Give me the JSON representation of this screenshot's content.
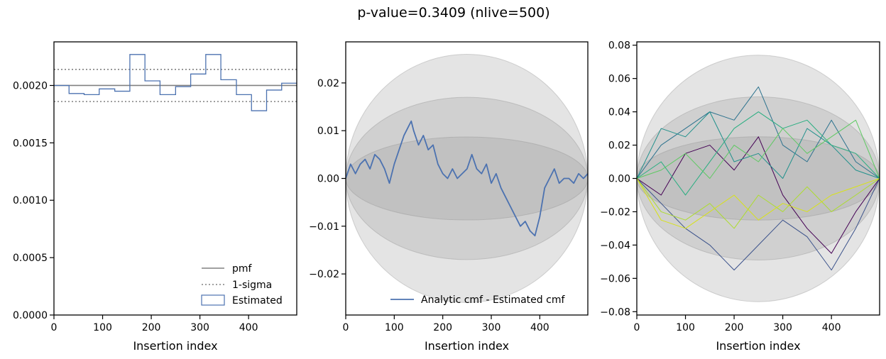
{
  "figure": {
    "title": "p-value=0.3409 (nlive=500)"
  },
  "chart_data": [
    {
      "type": "line",
      "panel": "left",
      "xlabel": "Insertion index",
      "ylabel": "",
      "xlim": [
        0,
        499
      ],
      "ylim": [
        0,
        0.00238
      ],
      "xticks": [
        0,
        100,
        200,
        300,
        400
      ],
      "xtick_labels": [
        "0",
        "100",
        "200",
        "300",
        "400"
      ],
      "yticks": [
        0,
        0.0005,
        0.001,
        0.0015,
        0.002
      ],
      "ytick_labels": [
        "0.0000",
        "0.0005",
        "0.0010",
        "0.0015",
        "0.0020"
      ],
      "legend_position": "lower-right",
      "series": [
        {
          "name": "pmf",
          "style": "solid",
          "color": "#808080",
          "x": [
            0,
            499
          ],
          "y": [
            0.002,
            0.002
          ]
        },
        {
          "name": "1-sigma",
          "style": "dotted",
          "color": "#808080",
          "y_levels": [
            0.00214,
            0.00186
          ]
        },
        {
          "name": "Estimated",
          "style": "step",
          "color": "#4c72b0",
          "bin_edges": [
            0,
            31,
            62,
            93,
            125,
            156,
            187,
            218,
            250,
            281,
            312,
            343,
            375,
            406,
            437,
            468,
            499
          ],
          "values": [
            0.002,
            0.00193,
            0.00192,
            0.00197,
            0.00195,
            0.00227,
            0.00204,
            0.00192,
            0.00199,
            0.0021,
            0.00227,
            0.00205,
            0.00192,
            0.00178,
            0.00196,
            0.00202
          ]
        }
      ]
    },
    {
      "type": "line",
      "panel": "middle",
      "xlabel": "Insertion index",
      "ylabel": "",
      "xlim": [
        0,
        499
      ],
      "ylim": [
        -0.0286,
        0.0286
      ],
      "xticks": [
        0,
        100,
        200,
        300,
        400
      ],
      "xtick_labels": [
        "0",
        "100",
        "200",
        "300",
        "400"
      ],
      "yticks": [
        0.02,
        0.01,
        0.0,
        -0.01,
        -0.02
      ],
      "ytick_labels": [
        "0.02",
        "0.01",
        "0.00",
        "−0.01",
        "−0.02"
      ],
      "sigma_bands": [
        0.026,
        0.017,
        0.0087
      ],
      "legend_position": "lower-right",
      "series": [
        {
          "name": "Analytic cmf - Estimated cmf",
          "color": "#4c72b0",
          "x": [
            0,
            10,
            20,
            30,
            40,
            50,
            60,
            70,
            80,
            90,
            100,
            110,
            120,
            130,
            135,
            140,
            150,
            160,
            170,
            180,
            190,
            200,
            210,
            220,
            230,
            240,
            250,
            260,
            270,
            280,
            290,
            300,
            310,
            320,
            330,
            340,
            350,
            360,
            370,
            380,
            390,
            400,
            410,
            420,
            430,
            440,
            450,
            460,
            470,
            480,
            490,
            499
          ],
          "y": [
            0.0,
            0.003,
            0.001,
            0.003,
            0.004,
            0.002,
            0.005,
            0.004,
            0.002,
            -0.001,
            0.003,
            0.006,
            0.009,
            0.011,
            0.012,
            0.01,
            0.007,
            0.009,
            0.006,
            0.007,
            0.003,
            0.001,
            0.0,
            0.002,
            0.0,
            0.001,
            0.002,
            0.005,
            0.002,
            0.001,
            0.003,
            -0.001,
            0.001,
            -0.002,
            -0.004,
            -0.006,
            -0.008,
            -0.01,
            -0.009,
            -0.011,
            -0.012,
            -0.008,
            -0.002,
            0.0,
            0.002,
            -0.001,
            0.0,
            0.0,
            -0.001,
            0.001,
            0.0,
            0.001
          ]
        }
      ]
    },
    {
      "type": "line",
      "panel": "right",
      "xlabel": "Insertion index",
      "ylabel": "",
      "xlim": [
        0,
        499
      ],
      "ylim": [
        -0.082,
        0.082
      ],
      "xticks": [
        0,
        100,
        200,
        300,
        400
      ],
      "xtick_labels": [
        "0",
        "100",
        "200",
        "300",
        "400"
      ],
      "yticks": [
        0.08,
        0.06,
        0.04,
        0.02,
        0.0,
        -0.02,
        -0.04,
        -0.06,
        -0.08
      ],
      "ytick_labels": [
        "0.08",
        "0.06",
        "0.04",
        "0.02",
        "0.00",
        "−0.02",
        "−0.04",
        "−0.06",
        "−0.08"
      ],
      "sigma_bands": [
        0.074,
        0.049,
        0.025
      ],
      "series": [
        {
          "color": "#440154",
          "x": [
            0,
            50,
            100,
            150,
            200,
            250,
            300,
            350,
            400,
            450,
            499
          ],
          "y": [
            0.0,
            -0.01,
            0.015,
            0.02,
            0.005,
            0.025,
            -0.01,
            -0.03,
            -0.045,
            -0.02,
            0.0
          ]
        },
        {
          "color": "#3b528b",
          "x": [
            0,
            50,
            100,
            150,
            200,
            250,
            300,
            350,
            400,
            450,
            499
          ],
          "y": [
            0.0,
            -0.015,
            -0.03,
            -0.04,
            -0.055,
            -0.04,
            -0.025,
            -0.035,
            -0.055,
            -0.03,
            0.0
          ]
        },
        {
          "color": "#2c728e",
          "x": [
            0,
            50,
            100,
            150,
            200,
            250,
            300,
            350,
            400,
            450,
            499
          ],
          "y": [
            0.0,
            0.02,
            0.03,
            0.04,
            0.035,
            0.055,
            0.02,
            0.01,
            0.035,
            0.01,
            0.0
          ]
        },
        {
          "color": "#21918c",
          "x": [
            0,
            50,
            100,
            150,
            200,
            250,
            300,
            350,
            400,
            450,
            499
          ],
          "y": [
            0.0,
            0.03,
            0.025,
            0.04,
            0.01,
            0.015,
            0.0,
            0.03,
            0.02,
            0.005,
            0.0
          ]
        },
        {
          "color": "#28ae80",
          "x": [
            0,
            50,
            100,
            150,
            200,
            250,
            300,
            350,
            400,
            450,
            499
          ],
          "y": [
            0.0,
            0.01,
            -0.01,
            0.01,
            0.03,
            0.04,
            0.03,
            0.035,
            0.02,
            0.015,
            0.0
          ]
        },
        {
          "color": "#5ec962",
          "x": [
            0,
            50,
            100,
            150,
            200,
            250,
            300,
            350,
            400,
            450,
            499
          ],
          "y": [
            0.0,
            0.005,
            0.015,
            0.0,
            0.02,
            0.01,
            0.03,
            0.015,
            0.025,
            0.035,
            0.0
          ]
        },
        {
          "color": "#addc30",
          "x": [
            0,
            50,
            100,
            150,
            200,
            250,
            300,
            350,
            400,
            450,
            499
          ],
          "y": [
            0.0,
            -0.02,
            -0.025,
            -0.015,
            -0.03,
            -0.01,
            -0.02,
            -0.005,
            -0.02,
            -0.01,
            0.0
          ]
        },
        {
          "color": "#d8e219",
          "x": [
            0,
            50,
            100,
            150,
            200,
            250,
            300,
            350,
            400,
            450,
            499
          ],
          "y": [
            0.0,
            -0.025,
            -0.03,
            -0.02,
            -0.01,
            -0.025,
            -0.015,
            -0.02,
            -0.01,
            -0.005,
            0.0
          ]
        }
      ]
    }
  ]
}
